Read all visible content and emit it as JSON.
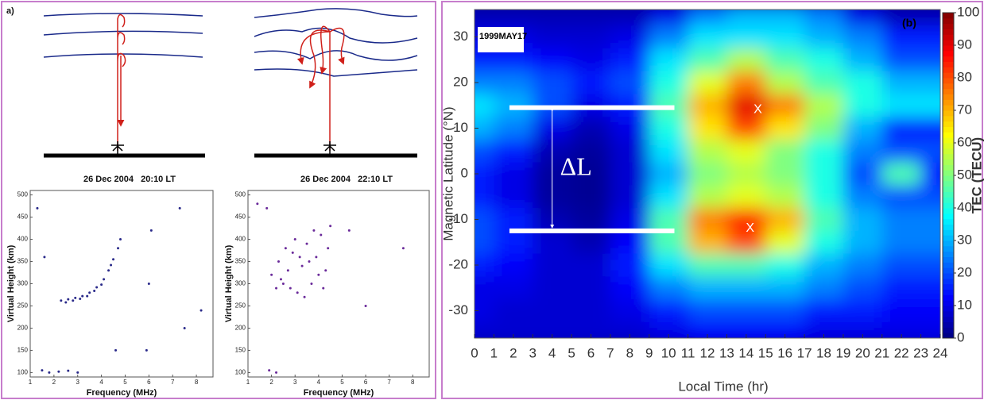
{
  "panel_a_label": "a)",
  "chart_data": [
    {
      "type": "scatter",
      "title": "26 Dec 2004   20:10 LT",
      "xlabel": "Frequency (MHz)",
      "ylabel": "Virtual Height (km)",
      "xlim": [
        1,
        8.7
      ],
      "ylim": [
        90,
        510
      ],
      "xticks": [
        1,
        2,
        3,
        4,
        5,
        6,
        7,
        8
      ],
      "yticks": [
        100,
        150,
        200,
        250,
        300,
        350,
        400,
        450,
        500
      ],
      "color": "#2a2a8a",
      "x": [
        2.3,
        2.6,
        2.9,
        3.2,
        3.5,
        3.8,
        4.1,
        4.3,
        4.5,
        4.7,
        4.8,
        2.5,
        2.8,
        3.1,
        3.4,
        3.7,
        4.0,
        4.4,
        1.5,
        1.8,
        2.2,
        2.6,
        3.0,
        1.3,
        4.6,
        5.9,
        6.0,
        6.1,
        7.3,
        7.5,
        1.6,
        8.2
      ],
      "values": [
        262,
        265,
        268,
        272,
        280,
        292,
        310,
        330,
        355,
        380,
        400,
        258,
        262,
        266,
        272,
        284,
        298,
        342,
        105,
        100,
        102,
        104,
        100,
        470,
        150,
        150,
        300,
        420,
        470,
        200,
        360,
        240
      ]
    },
    {
      "type": "scatter",
      "title": "26 Dec 2004   22:10 LT",
      "xlabel": "Frequency (MHz)",
      "ylabel": "Virtual Height (km)",
      "xlim": [
        1,
        8.7
      ],
      "ylim": [
        90,
        510
      ],
      "xticks": [
        1,
        2,
        3,
        4,
        5,
        6,
        7,
        8
      ],
      "yticks": [
        100,
        150,
        200,
        250,
        300,
        350,
        400,
        450,
        500
      ],
      "color": "#6a2a9a",
      "x": [
        2.0,
        2.3,
        2.5,
        2.7,
        2.9,
        3.1,
        3.3,
        3.5,
        3.7,
        3.9,
        4.1,
        4.3,
        4.5,
        2.6,
        3.0,
        3.4,
        3.8,
        4.2,
        2.2,
        4.4,
        1.8,
        5.3,
        6.0,
        7.6,
        1.9,
        2.2,
        2.4,
        3.2,
        3.6,
        4.0,
        2.8,
        1.4
      ],
      "values": [
        320,
        350,
        300,
        330,
        370,
        280,
        340,
        390,
        300,
        360,
        410,
        330,
        430,
        380,
        400,
        270,
        420,
        290,
        290,
        380,
        470,
        420,
        250,
        380,
        105,
        100,
        310,
        360,
        350,
        320,
        290,
        480
      ]
    },
    {
      "type": "heatmap",
      "xlabel": "Local Time (hr)",
      "ylabel": "Magnetic Latitude (°N)",
      "zlabel": "TEC (TECU)",
      "date": "1999MAY17",
      "panel_label": "(b)",
      "xlim": [
        0,
        24
      ],
      "ylim": [
        -36,
        36
      ],
      "zlim": [
        0,
        100
      ],
      "xticks": [
        0,
        1,
        2,
        3,
        4,
        5,
        6,
        7,
        8,
        9,
        10,
        11,
        12,
        13,
        14,
        15,
        16,
        17,
        18,
        19,
        20,
        21,
        22,
        23,
        24
      ],
      "yticks": [
        -30,
        -20,
        -10,
        0,
        10,
        20,
        30
      ],
      "zticks": [
        0,
        10,
        20,
        30,
        40,
        50,
        60,
        70,
        80,
        90,
        100
      ],
      "x": [
        0,
        2,
        4,
        6,
        8,
        10,
        12,
        14,
        16,
        18,
        20,
        22,
        24
      ],
      "y": [
        35,
        30,
        25,
        20,
        15,
        10,
        5,
        0,
        -5,
        -10,
        -15,
        -20,
        -25,
        -30,
        -35
      ],
      "values": [
        [
          5,
          5,
          5,
          5,
          5,
          10,
          25,
          30,
          30,
          25,
          10,
          5,
          5
        ],
        [
          10,
          10,
          8,
          8,
          10,
          25,
          35,
          35,
          35,
          30,
          25,
          15,
          15
        ],
        [
          15,
          15,
          12,
          10,
          15,
          35,
          45,
          55,
          45,
          40,
          30,
          20,
          20
        ],
        [
          25,
          25,
          20,
          15,
          20,
          40,
          60,
          75,
          55,
          45,
          40,
          30,
          30
        ],
        [
          35,
          30,
          20,
          10,
          15,
          45,
          70,
          90,
          75,
          55,
          40,
          35,
          35
        ],
        [
          30,
          25,
          10,
          5,
          10,
          40,
          65,
          80,
          65,
          50,
          30,
          15,
          15
        ],
        [
          20,
          15,
          5,
          3,
          8,
          35,
          55,
          60,
          50,
          40,
          25,
          20,
          20
        ],
        [
          15,
          10,
          3,
          2,
          8,
          30,
          50,
          55,
          50,
          40,
          20,
          45,
          15
        ],
        [
          15,
          10,
          3,
          2,
          8,
          35,
          55,
          60,
          55,
          40,
          25,
          20,
          20
        ],
        [
          20,
          15,
          5,
          3,
          10,
          45,
          75,
          85,
          70,
          45,
          30,
          25,
          25
        ],
        [
          20,
          15,
          8,
          5,
          12,
          45,
          70,
          80,
          60,
          40,
          30,
          25,
          25
        ],
        [
          15,
          12,
          8,
          8,
          15,
          35,
          45,
          45,
          40,
          30,
          25,
          20,
          20
        ],
        [
          10,
          10,
          8,
          8,
          12,
          25,
          30,
          30,
          30,
          25,
          20,
          15,
          15
        ],
        [
          10,
          8,
          8,
          8,
          10,
          15,
          20,
          20,
          20,
          15,
          15,
          12,
          12
        ],
        [
          8,
          8,
          8,
          8,
          8,
          10,
          12,
          12,
          12,
          10,
          10,
          10,
          10
        ]
      ],
      "markers": [
        {
          "label": "X",
          "x": 14.6,
          "y": 14
        },
        {
          "label": "X",
          "x": 14.2,
          "y": -12
        }
      ],
      "bracket": {
        "label": "ΔL",
        "x": [
          1.8,
          10.3
        ],
        "y": [
          14.5,
          -12.5
        ]
      }
    }
  ]
}
